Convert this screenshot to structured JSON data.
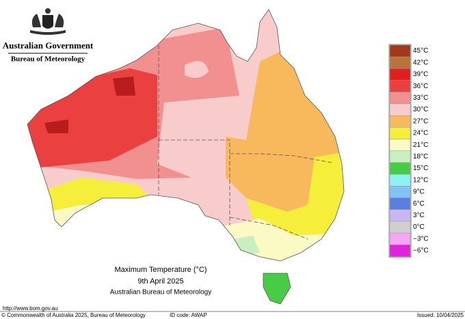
{
  "header": {
    "government": "Australian Government",
    "bureau": "Bureau of Meteorology"
  },
  "legend": {
    "items": [
      {
        "label": "45°C",
        "color": "#a13a1c"
      },
      {
        "label": "42°C",
        "color": "#b8743a"
      },
      {
        "label": "39°C",
        "color": "#e0201e"
      },
      {
        "label": "36°C",
        "color": "#ea4040"
      },
      {
        "label": "33°C",
        "color": "#f29090"
      },
      {
        "label": "30°C",
        "color": "#f9cccc"
      },
      {
        "label": "27°C",
        "color": "#f7b95c"
      },
      {
        "label": "24°C",
        "color": "#f5ee3a"
      },
      {
        "label": "21°C",
        "color": "#fbf9c4"
      },
      {
        "label": "18°C",
        "color": "#c9efc0"
      },
      {
        "label": "15°C",
        "color": "#48cc48"
      },
      {
        "label": "12°C",
        "color": "#8cf2f2"
      },
      {
        "label": "9°C",
        "color": "#7fc4f6"
      },
      {
        "label": "6°C",
        "color": "#5a7fe0"
      },
      {
        "label": "3°C",
        "color": "#c6b8f2"
      },
      {
        "label": "0°C",
        "color": "#cfcfcf"
      },
      {
        "label": "−3°C",
        "color": "#f6a6f2"
      },
      {
        "label": "−6°C",
        "color": "#e022e0"
      }
    ]
  },
  "title": {
    "line1": "Maximum Temperature (°C)",
    "line2": "9th April 2025",
    "line3": "Australian Bureau of Meteorology"
  },
  "footer": {
    "url": "http://www.bom.gov.au",
    "copyright": "© Commonwealth of Australia 2025, Bureau of Meteorology",
    "id_code": "ID code: AWAP",
    "issued": "Issued: 10/04/2025"
  }
}
